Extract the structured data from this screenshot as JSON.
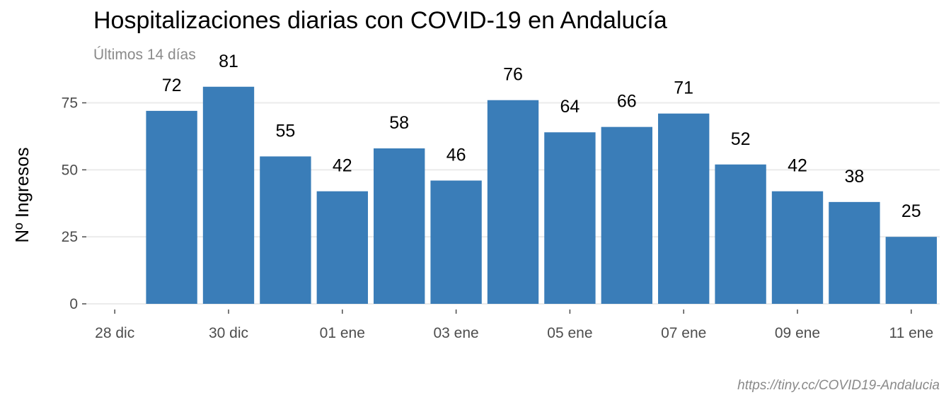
{
  "chart_data": {
    "type": "bar",
    "title": "Hospitalizaciones diarias con COVID-19 en Andalucía",
    "subtitle": "Últimos 14 días",
    "caption": "https://tiny.cc/COVID19-Andalucia",
    "xlabel": "",
    "ylabel": "Nº Ingresos",
    "ylim": [
      0,
      87
    ],
    "grid": true,
    "bar_color": "#3A7DB8",
    "grid_color": "#EBEBEB",
    "x_range": [
      27.5,
      42.5
    ],
    "bar_days": [
      29,
      30,
      31,
      32,
      33,
      34,
      35,
      36,
      37,
      38,
      39,
      40,
      41,
      42
    ],
    "values": [
      72,
      81,
      55,
      42,
      58,
      46,
      76,
      64,
      66,
      71,
      52,
      42,
      38,
      25
    ],
    "y_ticks": [
      0,
      25,
      50,
      75
    ],
    "x_ticks": [
      {
        "day": 28,
        "label": "28 dic"
      },
      {
        "day": 30,
        "label": "30 dic"
      },
      {
        "day": 32,
        "label": "01 ene"
      },
      {
        "day": 34,
        "label": "03 ene"
      },
      {
        "day": 36,
        "label": "05 ene"
      },
      {
        "day": 38,
        "label": "07 ene"
      },
      {
        "day": 40,
        "label": "09 ene"
      },
      {
        "day": 42,
        "label": "11 ene"
      }
    ]
  }
}
